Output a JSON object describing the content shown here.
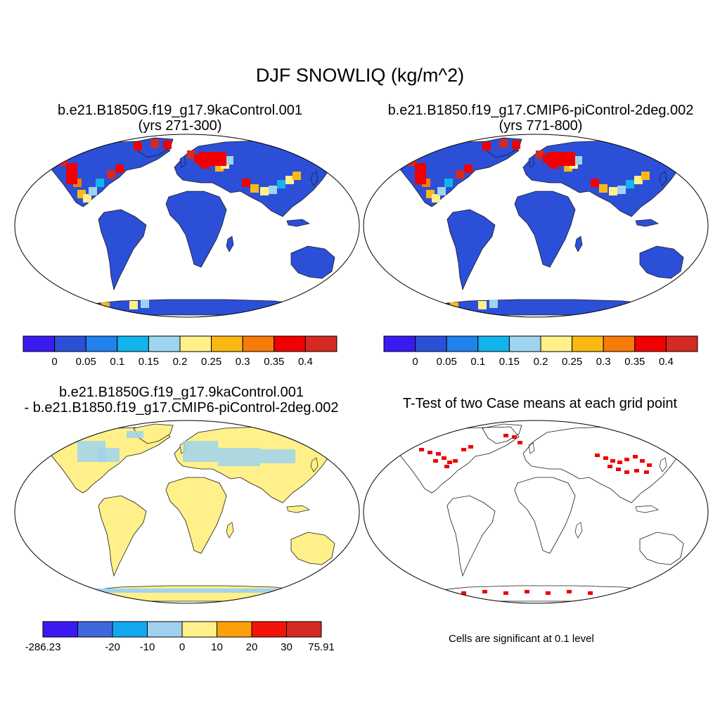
{
  "main_title": "DJF SNOWLIQ (kg/m^2)",
  "panels": {
    "top_left": {
      "title_line1": "b.e21.B1850G.f19_g17.9kaControl.001",
      "title_line2": "(yrs 271-300)"
    },
    "top_right": {
      "title_line1": "b.e21.B1850.f19_g17.CMIP6-piControl-2deg.002",
      "title_line2": "(yrs 771-800)"
    },
    "bottom_left": {
      "title_line1": "b.e21.B1850G.f19_g17.9kaControl.001",
      "title_line2": "- b.e21.B1850.f19_g17.CMIP6-piControl-2deg.002"
    },
    "bottom_right": {
      "title_line1": "T-Test of two Case means at each grid point"
    }
  },
  "colorbar_abs": {
    "colors": [
      "#3a1af0",
      "#2c4fd8",
      "#2282ee",
      "#12b4ee",
      "#9fd4ee",
      "#fff089",
      "#fbb814",
      "#f77b08",
      "#f00000",
      "#d42a22"
    ],
    "labels": [
      "0",
      "0.05",
      "0.1",
      "0.15",
      "0.2",
      "0.25",
      "0.3",
      "0.35",
      "0.4"
    ]
  },
  "colorbar_diff": {
    "colors": [
      "#3a1af0",
      "#3e68dc",
      "#12a8f0",
      "#9fd0ee",
      "#fff089",
      "#fba008",
      "#f21406",
      "#d42a22"
    ],
    "labels": [
      "-286.23",
      "-20",
      "-10",
      "0",
      "10",
      "20",
      "30",
      "75.91"
    ]
  },
  "significance_note": "Cells are significant at 0.1 level",
  "map_colors": {
    "land_base_abs": "#2c4fd8",
    "land_base_diff": "#fff089",
    "diff_negative": "#9fd4ee",
    "significant": "#ee0000"
  }
}
